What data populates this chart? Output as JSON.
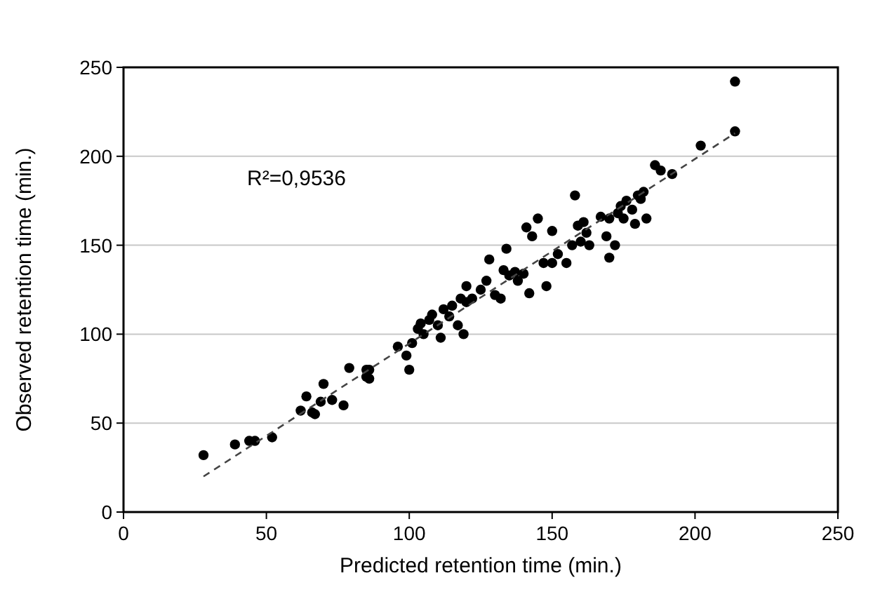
{
  "chart_data": {
    "type": "scatter",
    "xlabel": "Predicted retention time (min.)",
    "ylabel": "Observed retention time (min.)",
    "xlim": [
      0,
      250
    ],
    "ylim": [
      0,
      250
    ],
    "xticks": [
      0,
      50,
      100,
      150,
      200,
      250
    ],
    "yticks": [
      0,
      50,
      100,
      150,
      200,
      250
    ],
    "grid": "y",
    "marker": "circle",
    "annotations": [
      "R²=0,9536"
    ],
    "series": [
      {
        "color": "#000000",
        "x": [
          28,
          39,
          44,
          46,
          52,
          62,
          64,
          66,
          67,
          69,
          70,
          73,
          77,
          79,
          85,
          85,
          86,
          86,
          96,
          99,
          100,
          101,
          103,
          104,
          105,
          107,
          108,
          110,
          111,
          112,
          114,
          117,
          118,
          119,
          120,
          122,
          125,
          127,
          128,
          130,
          132,
          133,
          134,
          135,
          137,
          138,
          140,
          141,
          142,
          143,
          145,
          147,
          148,
          150,
          150,
          152,
          155,
          157,
          158,
          159,
          160,
          161,
          162,
          163,
          167,
          169,
          170,
          170,
          172,
          173,
          175,
          176,
          178,
          179,
          180,
          181,
          182,
          186,
          188,
          192,
          202,
          214,
          214,
          183,
          174,
          120,
          115
        ],
        "values": [
          32,
          38,
          40,
          40,
          42,
          57,
          65,
          56,
          55,
          62,
          72,
          63,
          60,
          81,
          80,
          76,
          75,
          80,
          93,
          88,
          80,
          95,
          103,
          106,
          100,
          108,
          111,
          105,
          98,
          114,
          110,
          105,
          120,
          100,
          127,
          120,
          125,
          130,
          142,
          122,
          120,
          136,
          148,
          133,
          135,
          130,
          134,
          160,
          123,
          155,
          165,
          140,
          127,
          158,
          140,
          145,
          140,
          150,
          178,
          161,
          152,
          163,
          157,
          150,
          166,
          155,
          143,
          165,
          150,
          168,
          165,
          175,
          170,
          162,
          178,
          176,
          180,
          195,
          192,
          190,
          206,
          242,
          214,
          165,
          172,
          118,
          116
        ]
      },
      {
        "type": "line",
        "color": "#444444",
        "line_style": "dashed",
        "marker": "none",
        "x": [
          28,
          214
        ],
        "values": [
          20,
          213
        ]
      }
    ]
  }
}
